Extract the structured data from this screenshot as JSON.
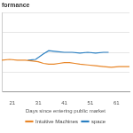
{
  "chart_data": {
    "type": "line",
    "title": "formance",
    "x_label": "Days since entering public market",
    "xlim": [
      17,
      66
    ],
    "xticks": [
      21,
      31,
      41,
      51,
      61
    ],
    "ylim": [
      0,
      100
    ],
    "yticks": [
      0,
      25,
      50,
      75,
      100
    ],
    "tick_labels": "x",
    "grid": true,
    "legend": "bottom",
    "series": [
      {
        "name": "Intuitive Machines",
        "color": "#e8872a",
        "x": [
          17,
          20,
          23,
          26,
          29,
          31,
          33,
          35,
          37,
          39,
          41,
          43,
          45,
          47,
          50,
          53,
          56,
          59,
          62,
          66
        ],
        "values": [
          40,
          41,
          40,
          40,
          39,
          38,
          36,
          35,
          35,
          36,
          37,
          37,
          36,
          35,
          34,
          33,
          32,
          31,
          32,
          32
        ]
      },
      {
        "name": "space",
        "color": "#2a7fc1",
        "x": [
          27,
          30,
          33,
          35,
          38,
          41,
          44,
          47,
          50,
          53,
          56,
          58
        ],
        "values": [
          40,
          41,
          48,
          52,
          51,
          50,
          50,
          49,
          50,
          49,
          50,
          50
        ]
      }
    ]
  }
}
